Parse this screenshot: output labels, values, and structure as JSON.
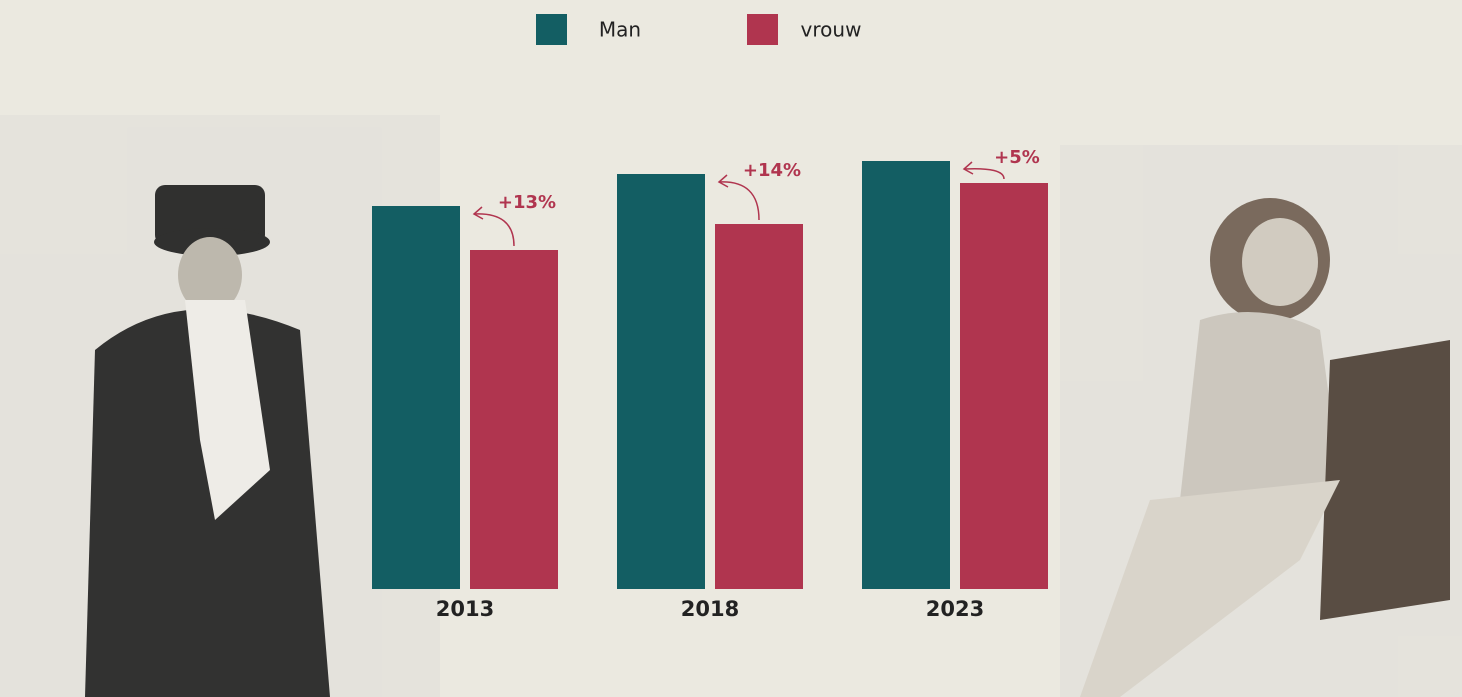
{
  "chart_data": {
    "type": "bar",
    "categories": [
      "2013",
      "2018",
      "2023"
    ],
    "series": [
      {
        "name": "Man",
        "color": "#135e63",
        "values": [
          383,
          415,
          428
        ]
      },
      {
        "name": "vrouw",
        "color": "#b0354f",
        "values": [
          339,
          365,
          406
        ]
      }
    ],
    "annotations": [
      "+13%",
      "+14%",
      "+5%"
    ],
    "ylim": [
      0,
      500
    ]
  }
}
